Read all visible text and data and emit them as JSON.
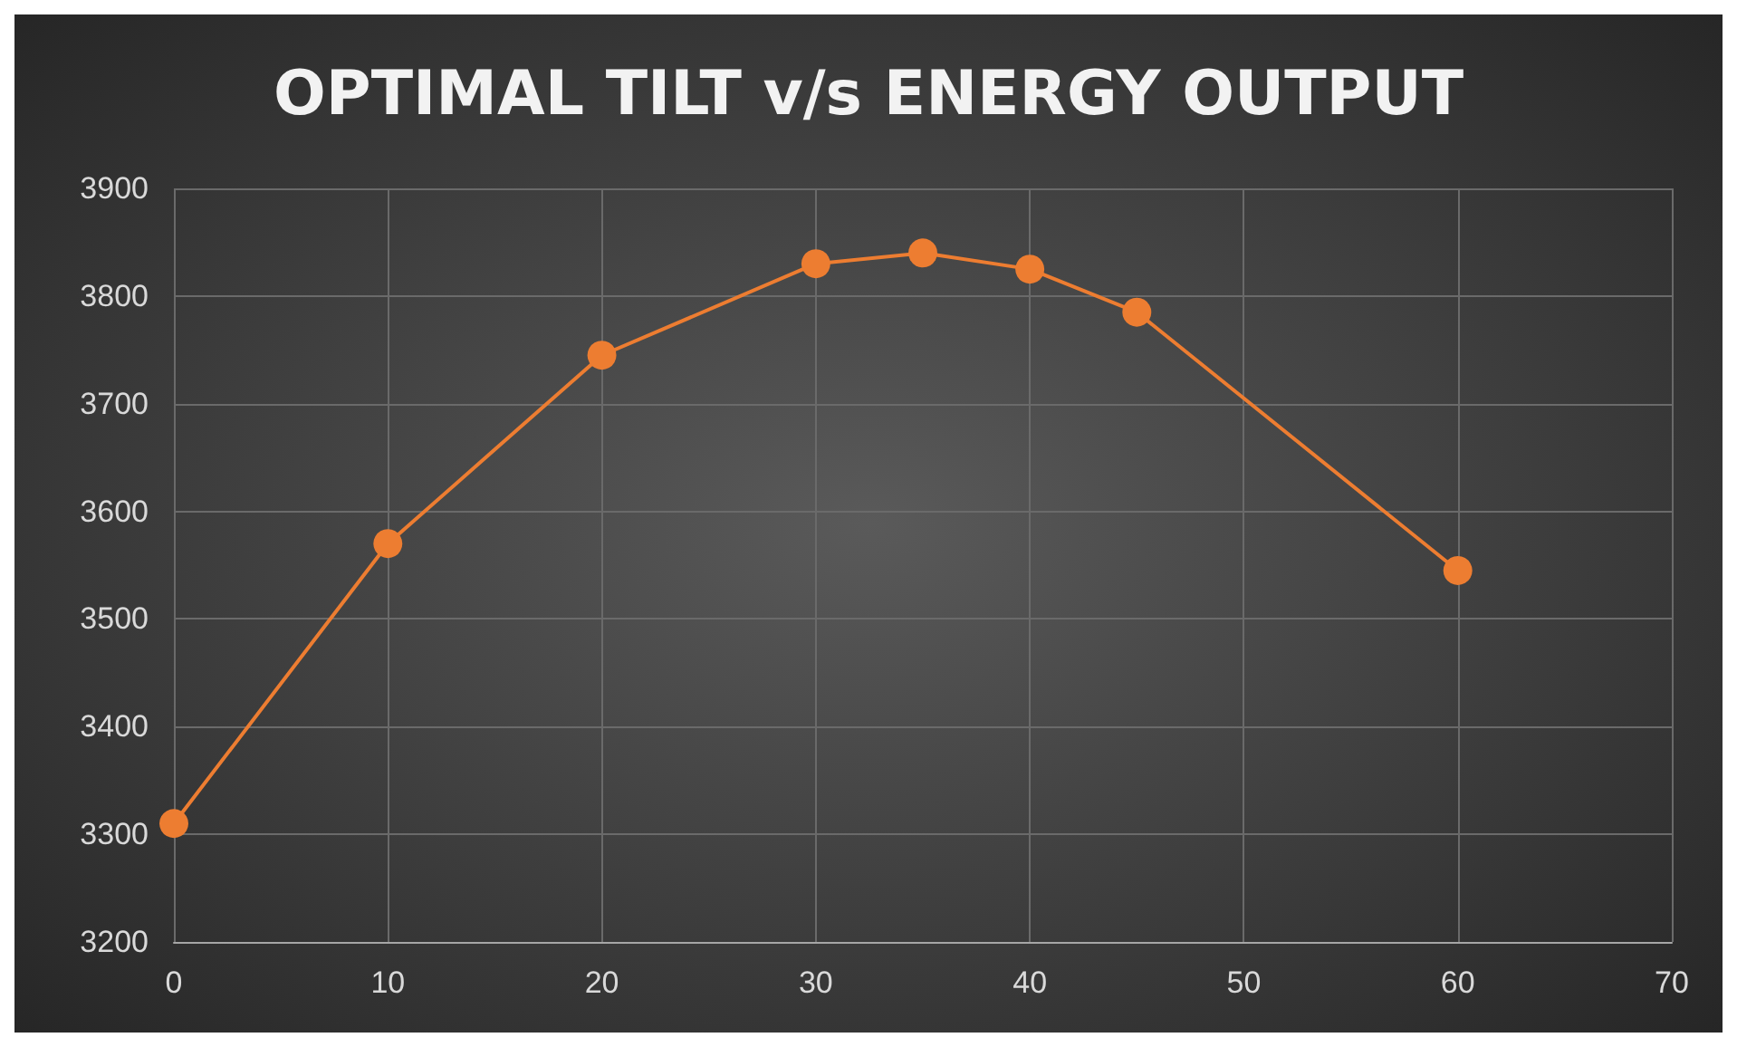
{
  "chart_data": {
    "type": "line",
    "title": "OPTIMAL TILT v/s ENERGY OUTPUT",
    "x": [
      0,
      10,
      20,
      30,
      35,
      40,
      45,
      60
    ],
    "series": [
      {
        "color": "#ed7d31",
        "values": [
          3310,
          3570,
          3745,
          3830,
          3840,
          3825,
          3785,
          3545
        ]
      }
    ],
    "xlim": [
      0,
      70
    ],
    "xticks": [
      0,
      10,
      20,
      30,
      40,
      50,
      60,
      70
    ],
    "ylim": [
      3200,
      3900
    ],
    "yticks": [
      3200,
      3300,
      3400,
      3500,
      3600,
      3700,
      3800,
      3900
    ],
    "grid": true,
    "marker": "circle",
    "line_style": "solid"
  }
}
